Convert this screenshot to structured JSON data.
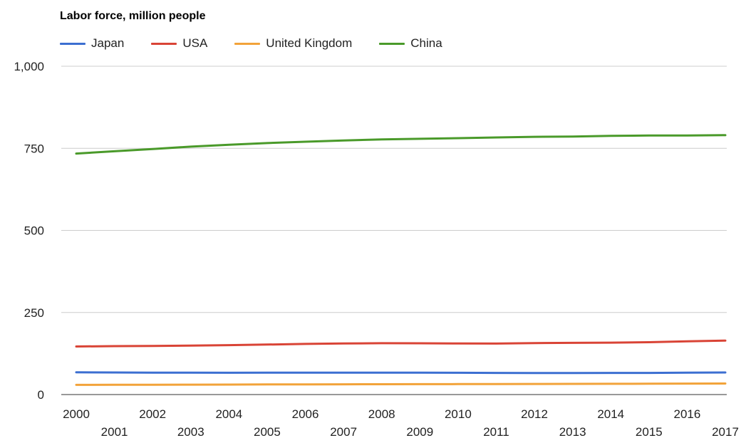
{
  "chart_data": {
    "type": "line",
    "title": "Labor force, million people",
    "xlabel": "",
    "ylabel": "",
    "x": [
      2000,
      2001,
      2002,
      2003,
      2004,
      2005,
      2006,
      2007,
      2008,
      2009,
      2010,
      2011,
      2012,
      2013,
      2014,
      2015,
      2016,
      2017
    ],
    "x_tick_labels": [
      "2000",
      "2001",
      "2002",
      "2003",
      "2004",
      "2005",
      "2006",
      "2007",
      "2008",
      "2009",
      "2010",
      "2011",
      "2012",
      "2013",
      "2014",
      "2015",
      "2016",
      "2017"
    ],
    "y_ticks": [
      0,
      250,
      500,
      750,
      1000
    ],
    "y_tick_labels": [
      "0",
      "250",
      "500",
      "750",
      "1,000"
    ],
    "ylim": [
      0,
      1000
    ],
    "grid": true,
    "legend_position": "top",
    "series": [
      {
        "name": "Japan",
        "color": "#3c6fd1",
        "values": [
          67.7,
          67.2,
          66.9,
          66.7,
          66.4,
          66.5,
          66.6,
          66.7,
          66.6,
          66.5,
          66.3,
          65.9,
          65.6,
          65.8,
          66.0,
          65.9,
          66.7,
          67.2
        ]
      },
      {
        "name": "USA",
        "color": "#d94436",
        "values": [
          146.5,
          147.4,
          148.1,
          149.1,
          150.6,
          152.3,
          154.3,
          155.5,
          156.5,
          156.2,
          155.6,
          155.4,
          156.8,
          157.5,
          158.2,
          159.5,
          162.0,
          164.5
        ]
      },
      {
        "name": "United Kingdom",
        "color": "#f2a33a",
        "values": [
          29.5,
          29.7,
          29.9,
          30.2,
          30.4,
          30.8,
          31.1,
          31.3,
          31.5,
          31.7,
          31.8,
          32.0,
          32.3,
          32.5,
          32.8,
          33.0,
          33.4,
          33.7
        ]
      },
      {
        "name": "China",
        "color": "#4a9a2a",
        "values": [
          734,
          741,
          748,
          755,
          761,
          766,
          770,
          774,
          777,
          779,
          781,
          783,
          785,
          786,
          788,
          789,
          789,
          790
        ]
      }
    ]
  }
}
